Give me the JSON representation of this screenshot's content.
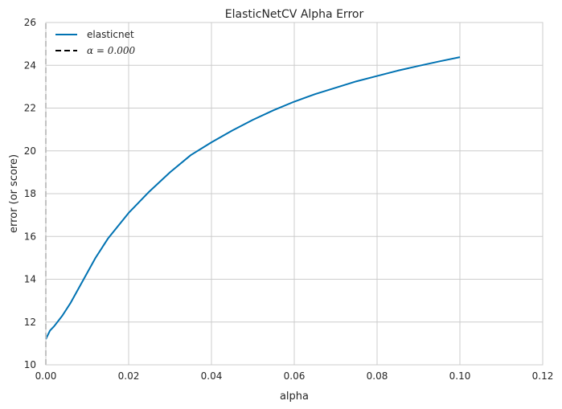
{
  "chart_data": {
    "type": "line",
    "title": "ElasticNetCV Alpha Error",
    "xlabel": "alpha",
    "ylabel": "error (or score)",
    "xlim": [
      0.0,
      0.12
    ],
    "ylim": [
      10,
      26
    ],
    "xticks": [
      "0.00",
      "0.02",
      "0.04",
      "0.06",
      "0.08",
      "0.10",
      "0.12"
    ],
    "yticks": [
      "10",
      "12",
      "14",
      "16",
      "18",
      "20",
      "22",
      "24",
      "26"
    ],
    "grid": true,
    "legend_position": "top-left",
    "series": [
      {
        "name": "elasticnet",
        "color": "#0072b2",
        "style": "solid",
        "x": [
          0.0,
          0.001,
          0.002,
          0.004,
          0.006,
          0.008,
          0.01,
          0.012,
          0.015,
          0.02,
          0.025,
          0.03,
          0.035,
          0.04,
          0.045,
          0.05,
          0.055,
          0.06,
          0.065,
          0.07,
          0.075,
          0.08,
          0.085,
          0.09,
          0.095,
          0.1
        ],
        "y": [
          11.2,
          11.6,
          11.8,
          12.3,
          12.9,
          13.6,
          14.3,
          15.0,
          15.9,
          17.1,
          18.1,
          19.0,
          19.8,
          20.4,
          20.95,
          21.45,
          21.9,
          22.3,
          22.65,
          22.95,
          23.25,
          23.5,
          23.75,
          23.97,
          24.18,
          24.38
        ]
      },
      {
        "name": "α = 0.000",
        "color": "#000000",
        "style": "dashed",
        "x": [
          0.0,
          0.0
        ],
        "y": [
          10,
          26
        ]
      }
    ],
    "vline_color": "#b8b8b8"
  }
}
